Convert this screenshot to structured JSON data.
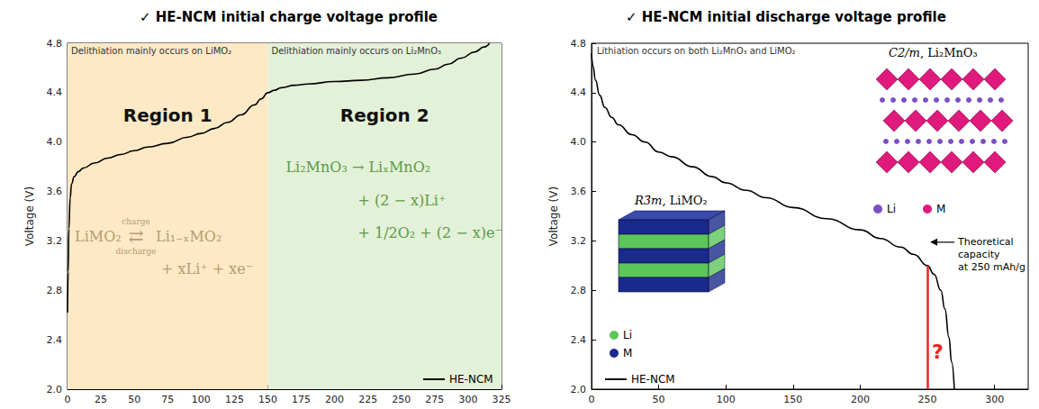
{
  "chart_data": [
    {
      "type": "line",
      "title": "✓ HE-NCM initial charge voltage profile",
      "ylabel": "Voltage (V)",
      "xlim": [
        0,
        325
      ],
      "xticks": [
        0,
        25,
        50,
        75,
        100,
        125,
        150,
        175,
        200,
        225,
        250,
        275,
        300,
        325
      ],
      "ylim": [
        2,
        4.8
      ],
      "yticks": [
        {
          "value": 2,
          "label": "2.0"
        },
        2.4,
        2.8,
        3.2,
        3.6,
        {
          "value": 4,
          "label": "4.0"
        },
        4.4,
        4.8
      ],
      "grid": false,
      "legend": "lower right",
      "regions": [
        {
          "name": "Region 1",
          "xlim": [
            0,
            150
          ],
          "color": "#fde9c6",
          "caption": "Delithiation mainly occurs on LiMO₂",
          "equation": [
            "LiMO₂",
            "charge",
            "⇄",
            "discharge",
            "Li₁₋ₓMO₂",
            "+ xLi⁺ + xe⁻"
          ],
          "equation_color": "#b59c72"
        },
        {
          "name": "Region 2",
          "xlim": [
            150,
            325
          ],
          "color": "#e4f1d9",
          "caption": "Delithiation mainly occurs on Li₂MnO₃",
          "equation": [
            "Li₂MnO₃ → LiₓMnO₂",
            "+ (2 − x)Li⁺",
            "+ 1/2O₂ + (2 − x)e⁻"
          ],
          "equation_color": "#5e9a48"
        }
      ],
      "series": [
        {
          "name": "HE-NCM",
          "color": "#000000",
          "x": [
            0,
            0.5,
            1,
            2,
            3,
            5,
            8,
            12,
            20,
            30,
            40,
            50,
            60,
            75,
            90,
            100,
            110,
            120,
            130,
            140,
            145,
            150,
            155,
            160,
            170,
            180,
            200,
            220,
            240,
            260,
            275,
            285,
            295,
            305,
            312,
            316
          ],
          "values": [
            2.62,
            2.95,
            3.3,
            3.55,
            3.66,
            3.72,
            3.76,
            3.79,
            3.83,
            3.87,
            3.9,
            3.93,
            3.96,
            3.99,
            4.04,
            4.07,
            4.11,
            4.16,
            4.22,
            4.3,
            4.35,
            4.4,
            4.42,
            4.44,
            4.46,
            4.47,
            4.49,
            4.5,
            4.52,
            4.55,
            4.59,
            4.63,
            4.68,
            4.73,
            4.77,
            4.8
          ]
        }
      ]
    },
    {
      "type": "line",
      "title": "✓ HE-NCM initial discharge voltage profile",
      "ylabel": "Voltage (V)",
      "xlim": [
        0,
        325
      ],
      "xticks": [
        0,
        50,
        100,
        150,
        200,
        250,
        300
      ],
      "ylim": [
        2,
        4.8
      ],
      "yticks": [
        {
          "value": 2,
          "label": "2.0"
        },
        2.4,
        2.8,
        3.2,
        3.6,
        {
          "value": 4,
          "label": "4.0"
        },
        4.4,
        4.8
      ],
      "grid": false,
      "legend": "lower left",
      "caption": "Lithiation occurs on both Li₂MnO₃ and LiMO₂",
      "marker_line": {
        "x": 250,
        "ylim": [
          2,
          3
        ],
        "color": "#e8281c",
        "label": "?"
      },
      "callout": [
        "Theoretical",
        "capacity",
        "at 250 mAh/g"
      ],
      "insets": [
        {
          "label": "R3̄m, LiMO₂",
          "legend": [
            {
              "label": "Li",
              "color": "#5cc65a"
            },
            {
              "label": "M",
              "color": "#1a2a8c"
            }
          ]
        },
        {
          "label": "C2/m, Li₂MnO₃",
          "legend": [
            {
              "label": "Li",
              "color": "#7a4fc4"
            },
            {
              "label": "M",
              "color": "#e0197d"
            }
          ]
        }
      ],
      "series": [
        {
          "name": "HE-NCM",
          "color": "#000000",
          "x": [
            0,
            1,
            3,
            6,
            10,
            15,
            20,
            30,
            40,
            50,
            60,
            75,
            90,
            100,
            115,
            130,
            150,
            175,
            200,
            215,
            230,
            240,
            250,
            255,
            260,
            263,
            266,
            268,
            270
          ],
          "values": [
            4.72,
            4.62,
            4.5,
            4.38,
            4.28,
            4.2,
            4.14,
            4.06,
            4.0,
            3.92,
            3.88,
            3.8,
            3.72,
            3.67,
            3.61,
            3.55,
            3.47,
            3.38,
            3.29,
            3.22,
            3.15,
            3.09,
            3.0,
            2.93,
            2.8,
            2.65,
            2.42,
            2.22,
            2.0
          ]
        }
      ]
    }
  ]
}
